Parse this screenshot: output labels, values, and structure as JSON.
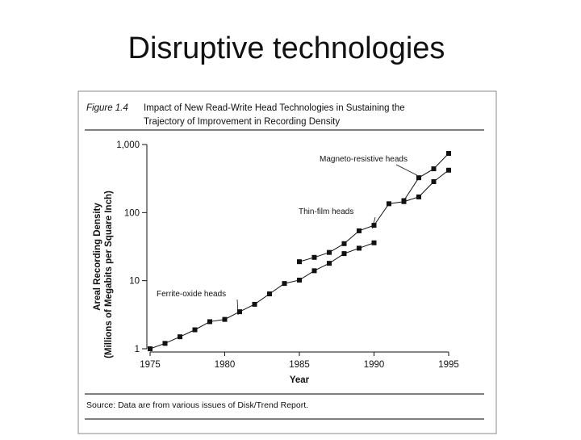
{
  "slide_title": "Disruptive technologies",
  "chart_data": {
    "type": "line",
    "figure_label": "Figure 1.4",
    "title_lines": [
      "Impact of New Read-Write Head Technologies in Sustaining the",
      "Trajectory of Improvement in Recording Density"
    ],
    "y_label_lines": [
      "Areal Recording Density",
      "(Millions of Megabits per Square Inch)"
    ],
    "x_label": "Year",
    "source": "Source: Data are from various issues of Disk/Trend Report.",
    "x": [
      1975,
      1976,
      1977,
      1978,
      1979,
      1980,
      1981,
      1982,
      1983,
      1984,
      1985,
      1986,
      1987,
      1988,
      1989,
      1990,
      1991,
      1992,
      1993,
      1994,
      1995
    ],
    "series": [
      {
        "name": "Ferrite-oxide heads",
        "color": "#111111",
        "values": [
          1.0,
          1.2,
          1.5,
          1.9,
          2.5,
          2.7,
          3.5,
          4.5,
          6.4,
          9.1,
          10.2,
          14,
          18,
          25,
          30,
          36,
          null,
          null,
          null,
          null,
          null
        ]
      },
      {
        "name": "Thin-film heads",
        "color": "#111111",
        "values": [
          null,
          null,
          null,
          null,
          null,
          null,
          null,
          null,
          null,
          null,
          19,
          22,
          26,
          35,
          54,
          65,
          135,
          145,
          170,
          285,
          420
        ]
      },
      {
        "name": "Magneto-resistive heads",
        "color": "#111111",
        "values": [
          null,
          null,
          null,
          null,
          null,
          null,
          null,
          null,
          null,
          null,
          null,
          null,
          null,
          null,
          null,
          null,
          null,
          150,
          325,
          440,
          740
        ]
      }
    ],
    "log_y": true,
    "xlim": [
      1975,
      1995
    ],
    "xticks": [
      1975,
      1980,
      1985,
      1990,
      1995
    ],
    "ylim": [
      1,
      1000
    ],
    "yticks": [
      1,
      10,
      100,
      {
        "value": 1000,
        "label": "1,000"
      }
    ]
  }
}
